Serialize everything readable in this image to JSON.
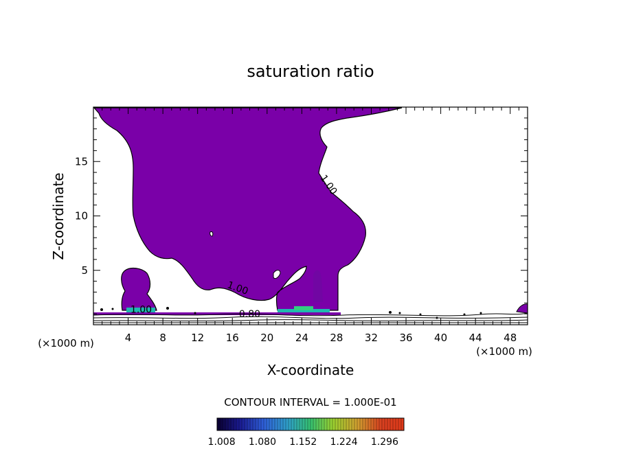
{
  "chart_data": {
    "type": "contour",
    "title": "saturation ratio",
    "xlabel": "X-coordinate",
    "ylabel": "Z-coordinate",
    "x_unit_label": "(×1000 m)",
    "z_unit_label": "(×1000 m)",
    "xlim": [
      0,
      50
    ],
    "ylim": [
      0,
      20
    ],
    "x_ticks": [
      4,
      8,
      12,
      16,
      20,
      24,
      28,
      32,
      36,
      40,
      44,
      48
    ],
    "y_ticks": [
      5,
      10,
      15
    ],
    "contour_labels": [
      {
        "text": "1.00",
        "x": 26.8,
        "z": 12.7
      },
      {
        "text": "1.00",
        "x": 16.5,
        "z": 3.1
      },
      {
        "text": "1.00",
        "x": 5.5,
        "z": 1.1
      },
      {
        "text": "0.80",
        "x": 18.0,
        "z": 0.7
      }
    ],
    "contour_interval_text": "CONTOUR INTERVAL = 1.000E-01",
    "colorbar": {
      "tick_labels": [
        "1.008",
        "1.080",
        "1.152",
        "1.224",
        "1.296"
      ],
      "range": [
        1.0,
        1.33
      ]
    },
    "colors": {
      "fill": "#7a00a8",
      "line": "#000000",
      "background": "#ffffff"
    }
  }
}
